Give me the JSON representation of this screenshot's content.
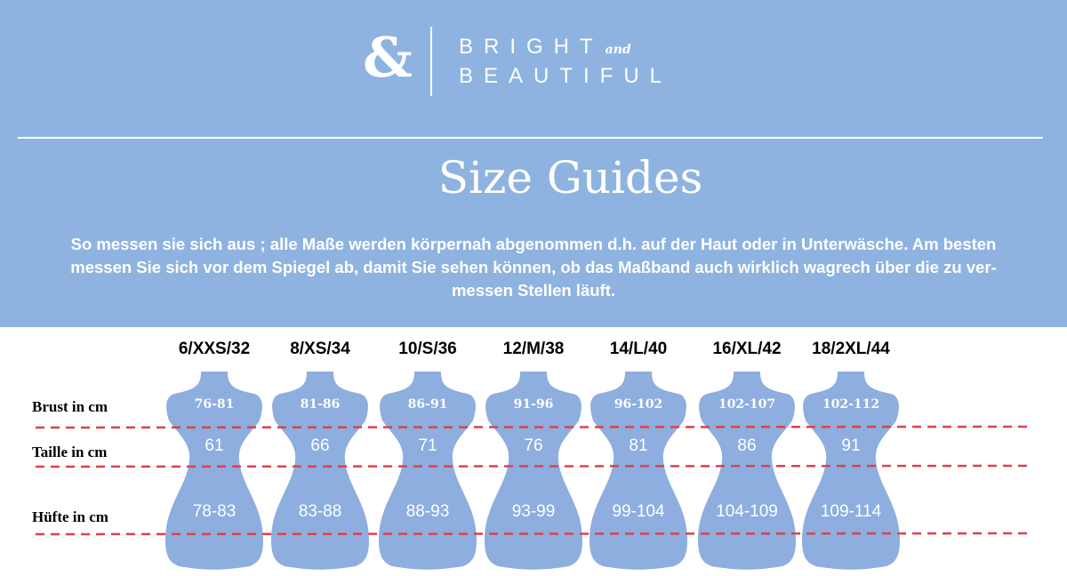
{
  "brand": {
    "logo_mark": "&",
    "line1": "BRIGHT",
    "and": "and",
    "line2": "BEAUTIFUL"
  },
  "title": "Size Guides",
  "description": [
    "So messen sie sich aus ; alle Maße werden körpernah abgenommen d.h. auf der Haut oder in Unterwäsche. Am besten",
    "messen Sie sich vor dem Spiegel ab, damit Sie sehen können, ob das Maßband auch wirklich wagrech über die zu ver-",
    "messen Stellen läuft."
  ],
  "row_labels": {
    "bust": "Brust in cm",
    "waist": "Taille in cm",
    "hip": "Hüfte in cm"
  },
  "sizes": [
    {
      "label": "6/XXS/32",
      "bust": "76-81",
      "waist": "61",
      "hip": "78-83"
    },
    {
      "label": "8/XS/34",
      "bust": "81-86",
      "waist": "66",
      "hip": "83-88"
    },
    {
      "label": "10/S/36",
      "bust": "86-91",
      "waist": "71",
      "hip": "88-93"
    },
    {
      "label": "12/M/38",
      "bust": "91-96",
      "waist": "76",
      "hip": "93-99"
    },
    {
      "label": "14/L/40",
      "bust": "96-102",
      "waist": "81",
      "hip": "99-104"
    },
    {
      "label": "16/XL/42",
      "bust": "102-107",
      "waist": "86",
      "hip": "104-109"
    },
    {
      "label": "18/2XL/44",
      "bust": "102-112",
      "waist": "91",
      "hip": "109-114"
    }
  ],
  "colors": {
    "banner": "#8fb3e0",
    "form": "#8daedf",
    "dash": "#e0404a"
  }
}
